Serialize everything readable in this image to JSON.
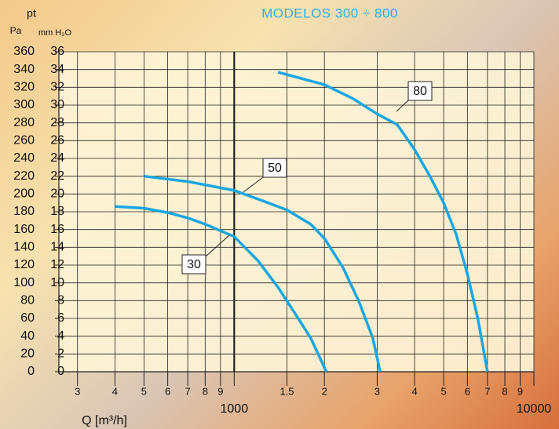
{
  "chart_data": {
    "type": "line",
    "title": "MODELOS 300 ÷ 800",
    "y2_title": "pt",
    "y2_unit": "Pa",
    "y_unit": "mm H₂O",
    "x_label": "Q [m³/h]",
    "x_log": true,
    "xlim": [
      260,
      10000
    ],
    "xticks": [
      {
        "value": 300,
        "label": "3"
      },
      {
        "value": 400,
        "label": "4"
      },
      {
        "value": 500,
        "label": "5"
      },
      {
        "value": 600,
        "label": "6"
      },
      {
        "value": 700,
        "label": "7"
      },
      {
        "value": 800,
        "label": "8"
      },
      {
        "value": 900,
        "label": "9"
      },
      1000,
      {
        "value": 1500,
        "label": "1.5"
      },
      {
        "value": 2000,
        "label": "2"
      },
      {
        "value": 3000,
        "label": "3"
      },
      {
        "value": 4000,
        "label": "4"
      },
      {
        "value": 5000,
        "label": "5"
      },
      {
        "value": 6000,
        "label": "6"
      },
      {
        "value": 7000,
        "label": "7"
      },
      {
        "value": 8000,
        "label": "8"
      },
      {
        "value": 9000,
        "label": "9"
      },
      10000
    ],
    "ylim": [
      0,
      36
    ],
    "yticks": [
      0,
      2,
      4,
      6,
      8,
      10,
      12,
      14,
      16,
      18,
      20,
      22,
      24,
      26,
      28,
      30,
      32,
      34,
      36
    ],
    "y2lim": [
      0,
      360
    ],
    "y2ticks": [
      0,
      20,
      40,
      60,
      80,
      100,
      120,
      140,
      160,
      180,
      200,
      220,
      240,
      260,
      280,
      300,
      320,
      340,
      360
    ],
    "grid": true,
    "series": [
      {
        "name": "30",
        "color": "#1aa7e0",
        "x": [
          400,
          500,
          600,
          700,
          800,
          1000,
          1200,
          1400,
          1600,
          1800,
          2030
        ],
        "values": [
          18.6,
          18.4,
          17.9,
          17.3,
          16.6,
          15.2,
          12.5,
          9.5,
          6.5,
          3.8,
          0
        ]
      },
      {
        "name": "50",
        "color": "#1aa7e0",
        "x": [
          500,
          700,
          1000,
          1300,
          1500,
          1800,
          2000,
          2300,
          2600,
          2900,
          3070
        ],
        "values": [
          22,
          21.4,
          20.4,
          19,
          18.2,
          16.6,
          15,
          11.8,
          8,
          3.8,
          0
        ]
      },
      {
        "name": "80",
        "color": "#1aa7e0",
        "x": [
          1400,
          2000,
          2500,
          3000,
          3500,
          4000,
          4500,
          5000,
          5500,
          6000,
          6500,
          7000
        ],
        "values": [
          33.7,
          32.3,
          30.7,
          29,
          27.8,
          25,
          22,
          19,
          15.5,
          11,
          6,
          0
        ]
      }
    ]
  }
}
